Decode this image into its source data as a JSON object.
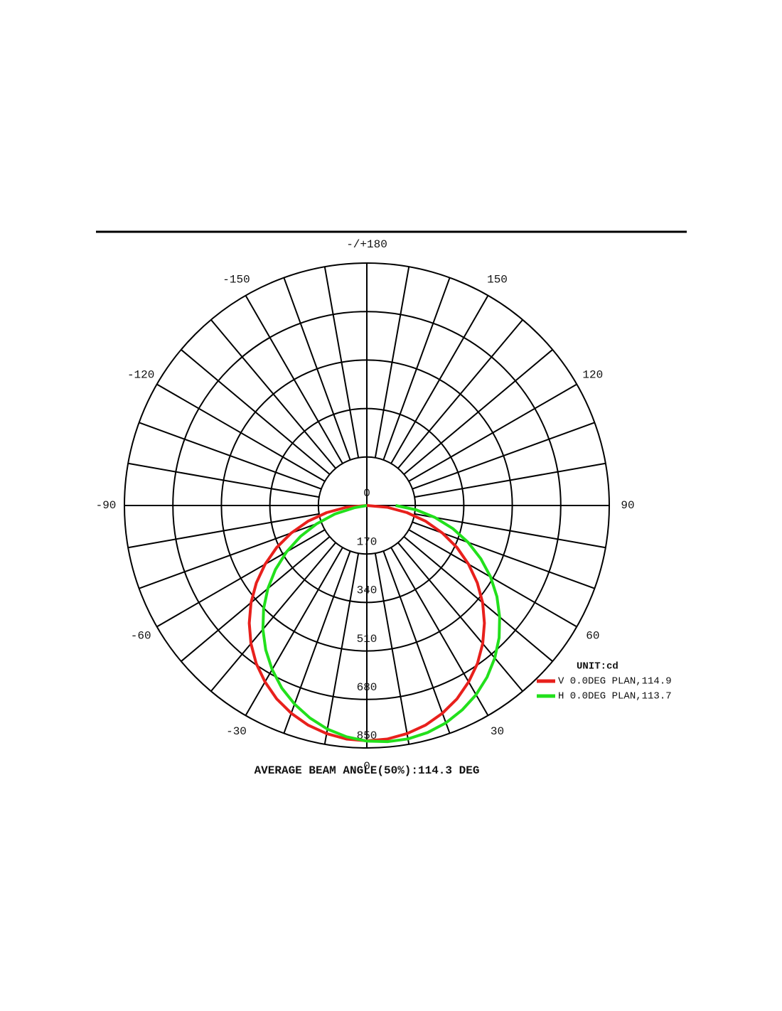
{
  "chart_data": {
    "type": "polar",
    "title": "AVERAGE BEAM ANGLE(50%):114.3 DEG",
    "unit_label": "UNIT:cd",
    "x": [
      -90,
      -85,
      -80,
      -75,
      -70,
      -65,
      -60,
      -55,
      -50,
      -45,
      -40,
      -35,
      -30,
      -25,
      -20,
      -15,
      -10,
      -5,
      0,
      5,
      10,
      15,
      20,
      25,
      30,
      35,
      40,
      45,
      50,
      55,
      60,
      65,
      70,
      75,
      80,
      85,
      90
    ],
    "series": [
      {
        "name": "V 0.0DEG PLAN,114.9",
        "color": "#e8201c",
        "values": [
          0,
          72,
          143,
          214,
          282,
          349,
          412,
          473,
          530,
          583,
          632,
          676,
          714,
          748,
          775,
          797,
          812,
          822,
          825,
          822,
          812,
          797,
          775,
          748,
          714,
          676,
          632,
          583,
          530,
          473,
          412,
          349,
          282,
          214,
          143,
          72,
          0
        ]
      },
      {
        "name": "H 0.0DEG PLAN,113.7",
        "color": "#22e01c",
        "values": [
          0,
          0,
          43,
          116,
          187,
          257,
          325,
          391,
          453,
          512,
          567,
          618,
          664,
          706,
          741,
          771,
          796,
          814,
          826,
          831,
          831,
          824,
          811,
          791,
          766,
          735,
          698,
          656,
          608,
          557,
          501,
          441,
          378,
          312,
          243,
          173,
          101
        ]
      }
    ],
    "rlim": [
      0,
      850
    ],
    "rticks": [
      0,
      170,
      340,
      510,
      680,
      850
    ],
    "angle_ticks": [
      0,
      30,
      60,
      90,
      120,
      150,
      {
        "value": 180,
        "label": "-/+180"
      },
      -150,
      -120,
      -90,
      -60,
      -30
    ],
    "angle_grid_step": 10
  }
}
